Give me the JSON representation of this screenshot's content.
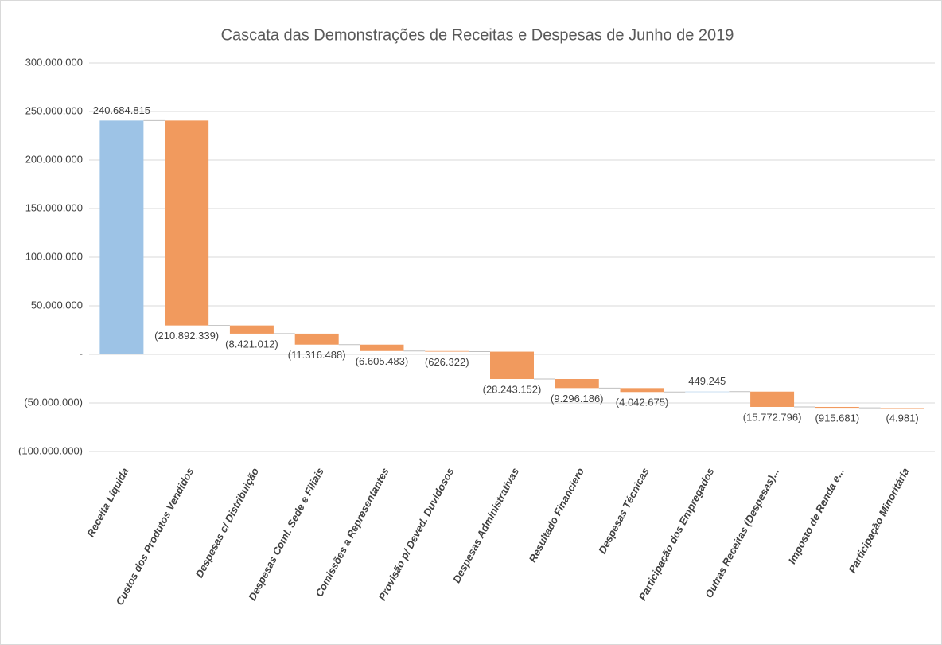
{
  "chart_data": {
    "type": "waterfall",
    "title": "Cascata das Demonstrações de Receitas e Despesas de Junho de 2019",
    "categories": [
      "Receita Líquida",
      "Custos dos Produtos Vendidos",
      "Despesas c/ Distribuição",
      "Despesas Coml. Sede e Filiais",
      "Comissões a Representantes",
      "Provisão p/ Deved. Duvidosos",
      "Despesas  Administrativas",
      "Resultado Financiero",
      "Despesas  Técnicas",
      "Participação dos Empregados",
      "Outras Receitas (Despesas)...",
      "Imposto de Renda e...",
      "Participação Minoritária"
    ],
    "values": [
      240684815,
      -210892339,
      -8421012,
      -11316488,
      -6605483,
      -626322,
      -28243152,
      -9296186,
      -4042675,
      449245,
      -15772796,
      -915681,
      -4981
    ],
    "value_labels": [
      "240.684.815",
      "(210.892.339)",
      "(8.421.012)",
      "(11.316.488)",
      "(6.605.483)",
      "(626.322)",
      "(28.243.152)",
      "(9.296.186)",
      "(4.042.675)",
      "449.245",
      "(15.772.796)",
      "(915.681)",
      "(4.981)"
    ],
    "increase_color": "#9dc3e6",
    "decrease_color": "#f19a5e",
    "ylim": [
      -100000000,
      300000000
    ],
    "yticks": [
      {
        "value": -100000000,
        "label": "(100.000.000)"
      },
      {
        "value": -50000000,
        "label": "(50.000.000)"
      },
      {
        "value": 0,
        "label": "-"
      },
      {
        "value": 50000000,
        "label": "50.000.000"
      },
      {
        "value": 100000000,
        "label": "100.000.000"
      },
      {
        "value": 150000000,
        "label": "150.000.000"
      },
      {
        "value": 200000000,
        "label": "200.000.000"
      },
      {
        "value": 250000000,
        "label": "250.000.000"
      },
      {
        "value": 300000000,
        "label": "300.000.000"
      }
    ],
    "grid": true
  }
}
